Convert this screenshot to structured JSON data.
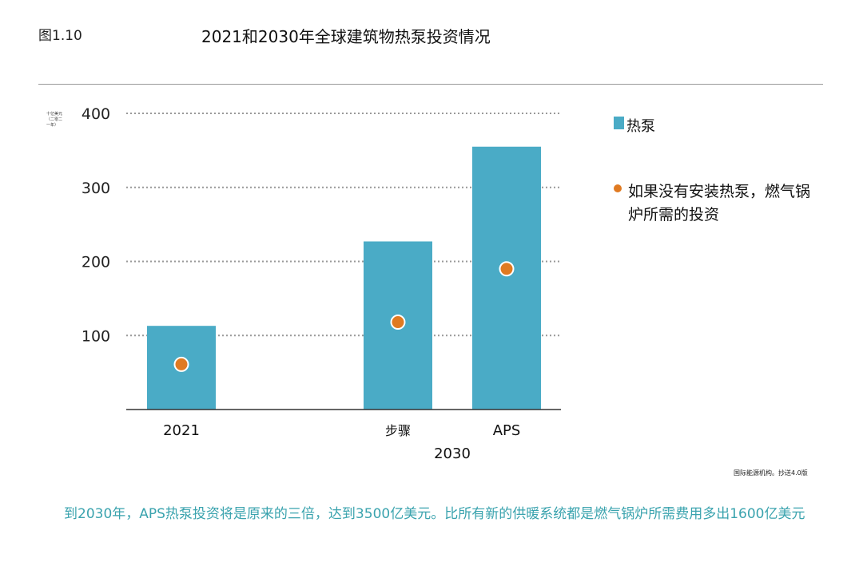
{
  "figure_label": "图1.10",
  "title": "2021和2030年全球建筑物热泵投资情况",
  "y_axis_label": "十亿美元（二零二一年）",
  "legend": {
    "bar_label": "热泵",
    "dot_label": "如果没有安装热泵，燃气锅炉所需的投资"
  },
  "source": "国际能源机构。抄送4.0版",
  "caption": "到2030年，APS热泵投资将是原来的三倍，达到3500亿美元。比所有新的供暖系统都是燃气锅炉所需费用多出1600亿美元",
  "colors": {
    "bar": "#4aabc6",
    "dot": "#e07a21",
    "caption": "#3aa3ae",
    "grid": "#999999"
  },
  "chart_data": {
    "type": "bar",
    "title": "2021和2030年全球建筑物热泵投资情况",
    "ylabel": "十亿美元（二零二一年）",
    "ylim": [
      0,
      400
    ],
    "yticks": [
      100,
      200,
      300,
      400
    ],
    "grid": true,
    "legend_position": "right",
    "categories": [
      "2021",
      "步骤",
      "APS"
    ],
    "category_groups": [
      {
        "label": "",
        "members": [
          "2021"
        ]
      },
      {
        "label": "2030",
        "members": [
          "步骤",
          "APS"
        ]
      }
    ],
    "series": [
      {
        "name": "热泵",
        "kind": "bar",
        "values": [
          113,
          227,
          355
        ]
      },
      {
        "name": "如果没有安装热泵，燃气锅炉所需的投资",
        "kind": "point",
        "values": [
          61,
          118,
          190
        ]
      }
    ]
  }
}
